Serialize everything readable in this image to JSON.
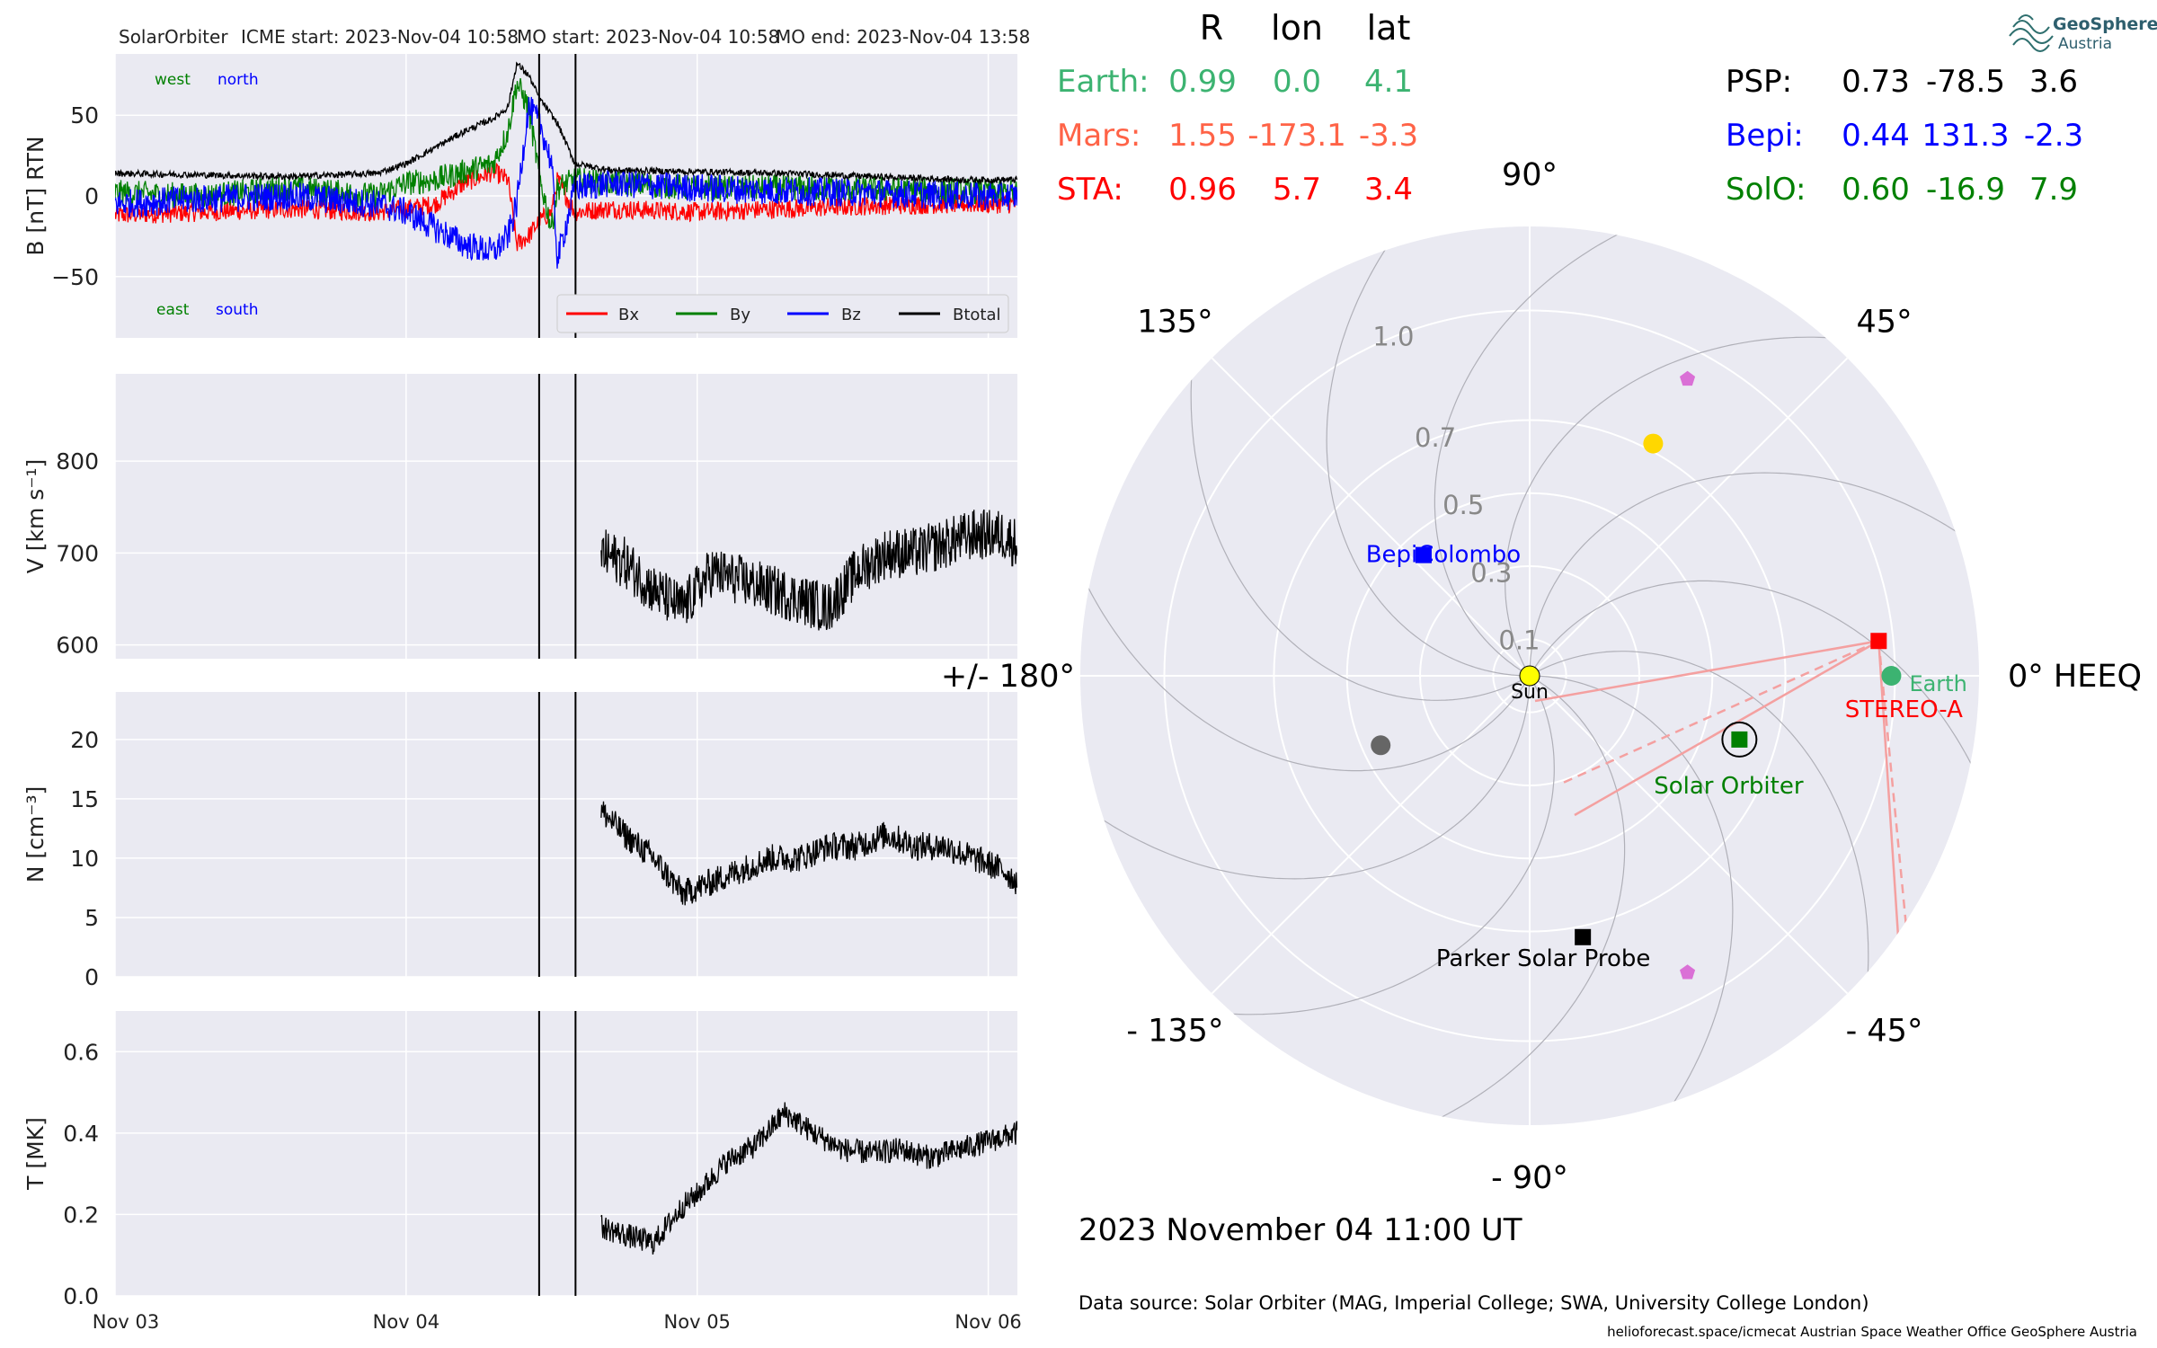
{
  "header": {
    "spacecraft": "SolarOrbiter",
    "icme_start": "ICME start: 2023-Nov-04 10:58",
    "mo_start": "MO start: 2023-Nov-04 10:58",
    "mo_end": "MO end: 2023-Nov-04 13:58"
  },
  "colors": {
    "panel_bg": "#eaeaf2",
    "grid": "#ffffff",
    "bx": "#ff0000",
    "by": "#008000",
    "bz": "#0000ff",
    "btotal": "#000000",
    "earth": "#3cb371",
    "mars": "#ff6347",
    "sta": "#ff0000",
    "psp": "#000000",
    "bepi": "#0000ff",
    "solo": "#008000",
    "mercury": "#666666",
    "venus": "#ffd700",
    "pentagon": "#da70d6"
  },
  "timeseries": {
    "x_ticks": [
      "Nov 03",
      "Nov 04",
      "Nov 05",
      "Nov 06"
    ],
    "x_range_days": [
      0.0,
      3.1
    ],
    "event_lines_days": [
      1.457,
      1.582
    ],
    "panels": [
      {
        "id": "b",
        "ylabel": "B [nT] RTN",
        "ylim": [
          -88,
          88
        ],
        "yticks": [
          -50,
          0,
          50
        ],
        "corner_labels": {
          "top_left": "west",
          "top_right": "north",
          "bottom_left": "east",
          "bottom_right": "south"
        },
        "legend": [
          "Bx",
          "By",
          "Bz",
          "Btotal"
        ]
      },
      {
        "id": "v",
        "ylabel": "V [km s⁻¹]",
        "ylim": [
          585,
          895
        ],
        "yticks": [
          600,
          700,
          800
        ]
      },
      {
        "id": "n",
        "ylabel": "N [cm⁻³]",
        "ylim": [
          0,
          24
        ],
        "yticks": [
          0,
          5,
          10,
          15,
          20
        ]
      },
      {
        "id": "t",
        "ylabel": "T [MK]",
        "ylim": [
          0,
          0.7
        ],
        "yticks": [
          "0.0",
          "0.2",
          "0.4",
          "0.6"
        ]
      }
    ]
  },
  "chart_data": [
    {
      "type": "line",
      "title": "",
      "xlabel": "",
      "ylabel": "B [nT] RTN",
      "x_unit": "days since 2023-11-03 00:00",
      "series": [
        {
          "name": "Bx",
          "x": [
            0.0,
            0.3,
            0.6,
            0.9,
            1.0,
            1.1,
            1.2,
            1.3,
            1.35,
            1.38,
            1.42,
            1.46,
            1.5,
            1.52,
            1.58,
            1.7,
            2.0,
            2.3,
            2.6,
            2.9,
            3.1
          ],
          "y": [
            -12,
            -10,
            -8,
            -10,
            -8,
            -5,
            8,
            15,
            10,
            -30,
            -25,
            -15,
            -10,
            10,
            -10,
            -8,
            -10,
            -8,
            -6,
            -5,
            -5
          ]
        },
        {
          "name": "By",
          "x": [
            0.0,
            0.3,
            0.6,
            0.9,
            1.0,
            1.1,
            1.2,
            1.3,
            1.35,
            1.38,
            1.42,
            1.46,
            1.5,
            1.52,
            1.58,
            1.7,
            2.0,
            2.3,
            2.6,
            2.9,
            3.1
          ],
          "y": [
            2,
            0,
            5,
            0,
            8,
            10,
            15,
            20,
            40,
            70,
            55,
            10,
            -20,
            5,
            10,
            8,
            5,
            5,
            4,
            3,
            2
          ]
        },
        {
          "name": "Bz",
          "x": [
            0.0,
            0.3,
            0.6,
            0.9,
            1.0,
            1.1,
            1.2,
            1.3,
            1.35,
            1.38,
            1.42,
            1.46,
            1.5,
            1.52,
            1.58,
            1.7,
            2.0,
            2.3,
            2.6,
            2.9,
            3.1
          ],
          "y": [
            -5,
            -2,
            0,
            -5,
            -10,
            -20,
            -30,
            -35,
            -25,
            -5,
            55,
            45,
            20,
            -40,
            5,
            8,
            5,
            3,
            2,
            0,
            0
          ]
        },
        {
          "name": "Btotal",
          "x": [
            0.0,
            0.3,
            0.6,
            0.9,
            1.0,
            1.1,
            1.2,
            1.3,
            1.35,
            1.38,
            1.42,
            1.46,
            1.5,
            1.52,
            1.58,
            1.7,
            2.0,
            2.3,
            2.6,
            2.9,
            3.1
          ],
          "y": [
            14,
            13,
            12,
            14,
            20,
            30,
            40,
            48,
            55,
            82,
            75,
            60,
            50,
            45,
            20,
            16,
            15,
            14,
            12,
            10,
            10
          ]
        }
      ]
    },
    {
      "type": "line",
      "title": "",
      "xlabel": "",
      "ylabel": "V [km s⁻¹]",
      "x_unit": "days since 2023-11-03 00:00",
      "series": [
        {
          "name": "",
          "x": [
            1.67,
            1.75,
            1.85,
            1.95,
            2.05,
            2.15,
            2.25,
            2.35,
            2.45,
            2.55,
            2.65,
            2.75,
            2.85,
            2.95,
            3.05,
            3.1
          ],
          "y": [
            700,
            690,
            660,
            640,
            680,
            670,
            660,
            650,
            640,
            680,
            700,
            700,
            710,
            720,
            720,
            710
          ]
        }
      ]
    },
    {
      "type": "line",
      "title": "",
      "xlabel": "",
      "ylabel": "N [cm⁻³]",
      "x_unit": "days since 2023-11-03 00:00",
      "series": [
        {
          "name": "",
          "x": [
            1.67,
            1.75,
            1.85,
            1.95,
            2.05,
            2.15,
            2.25,
            2.35,
            2.45,
            2.55,
            2.65,
            2.75,
            2.85,
            2.95,
            3.05,
            3.1
          ],
          "y": [
            14,
            12,
            10,
            7,
            8,
            9,
            10,
            10,
            11,
            11,
            12,
            11,
            11,
            10,
            9,
            8
          ]
        }
      ]
    },
    {
      "type": "line",
      "title": "",
      "xlabel": "",
      "ylabel": "T [MK]",
      "x_unit": "days since 2023-11-03 00:00",
      "series": [
        {
          "name": "",
          "x": [
            1.67,
            1.75,
            1.85,
            1.95,
            2.0,
            2.1,
            2.2,
            2.3,
            2.4,
            2.5,
            2.6,
            2.7,
            2.8,
            2.9,
            3.0,
            3.1
          ],
          "y": [
            0.17,
            0.15,
            0.13,
            0.22,
            0.25,
            0.33,
            0.37,
            0.45,
            0.4,
            0.36,
            0.35,
            0.36,
            0.34,
            0.36,
            0.38,
            0.4
          ]
        }
      ]
    },
    {
      "type": "polar",
      "title": "2023 November 04  11:00 UT",
      "r_ticks": [
        "0.1",
        "0.3",
        "0.5",
        "0.7",
        "1.0"
      ],
      "r_values": [
        0.1,
        0.3,
        0.5,
        0.7,
        1.0
      ],
      "r_max": 1.23,
      "angle_labels": [
        {
          "deg": 0,
          "text": "0° HEEQ"
        },
        {
          "deg": 45,
          "text": "45°"
        },
        {
          "deg": 90,
          "text": "90°"
        },
        {
          "deg": 135,
          "text": "135°"
        },
        {
          "deg": 180,
          "text": "+/- 180°"
        },
        {
          "deg": -135,
          "text": "- 135°"
        },
        {
          "deg": -90,
          "text": "- 90°"
        },
        {
          "deg": -45,
          "text": "- 45°"
        }
      ],
      "objects": [
        {
          "id": "sun",
          "label": "Sun",
          "r": 0.0,
          "lon": 0,
          "marker": "circle",
          "color": "#ffff00"
        },
        {
          "id": "earth",
          "label": "Earth",
          "r": 0.99,
          "lon": 0.0,
          "marker": "circle",
          "color": "#3cb371"
        },
        {
          "id": "sta",
          "label": "STEREO-A",
          "r": 0.96,
          "lon": 5.7,
          "marker": "square",
          "color": "#ff0000"
        },
        {
          "id": "solo",
          "label": "Solar Orbiter",
          "r": 0.6,
          "lon": -16.9,
          "marker": "square",
          "color": "#008000"
        },
        {
          "id": "bepi",
          "label": "BepiColombo",
          "r": 0.44,
          "lon": 131.3,
          "marker": "square",
          "color": "#0000ff"
        },
        {
          "id": "psp",
          "label": "Parker Solar Probe",
          "r": 0.73,
          "lon": -78.5,
          "marker": "square",
          "color": "#000000"
        },
        {
          "id": "venus",
          "label": "",
          "r": 0.72,
          "lon": 62,
          "marker": "circle",
          "color": "#ffd700"
        },
        {
          "id": "mercury",
          "label": "",
          "r": 0.45,
          "lon": -155,
          "marker": "circle",
          "color": "#666666"
        },
        {
          "id": "p1",
          "label": "",
          "r": 0.92,
          "lon": 62,
          "marker": "pentagon",
          "color": "#da70d6"
        },
        {
          "id": "p2",
          "label": "",
          "r": 0.92,
          "lon": -62,
          "marker": "pentagon",
          "color": "#da70d6"
        }
      ]
    }
  ],
  "positions_table": {
    "headers": [
      "R",
      "lon",
      "lat"
    ],
    "left": [
      {
        "name": "Earth:",
        "r": "0.99",
        "lon": "0.0",
        "lat": "4.1",
        "color": "#3cb371"
      },
      {
        "name": "Mars:",
        "r": "1.55",
        "lon": "-173.1",
        "lat": "-3.3",
        "color": "#ff6347"
      },
      {
        "name": "STA:",
        "r": "0.96",
        "lon": "5.7",
        "lat": "3.4",
        "color": "#ff0000"
      }
    ],
    "right": [
      {
        "name": "PSP:",
        "r": "0.73",
        "lon": "-78.5",
        "lat": "3.6",
        "color": "#000000"
      },
      {
        "name": "Bepi:",
        "r": "0.44",
        "lon": "131.3",
        "lat": "-2.3",
        "color": "#0000ff"
      },
      {
        "name": "SolO:",
        "r": "0.60",
        "lon": "-16.9",
        "lat": "7.9",
        "color": "#008000"
      }
    ]
  },
  "logo": {
    "line1": "GeoSphere",
    "line2": "Austria"
  },
  "footer": {
    "date": "2023 November 04  11:00 UT",
    "source": "Data source: Solar Orbiter (MAG, Imperial College; SWA, University College London)",
    "credits": "helioforecast.space/icmecat   Austrian Space Weather Office   GeoSphere Austria"
  }
}
